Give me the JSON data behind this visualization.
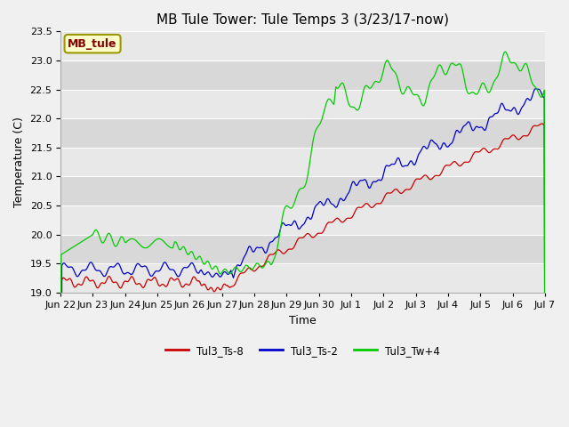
{
  "title": "MB Tule Tower: Tule Temps 3 (3/23/17-now)",
  "xlabel": "Time",
  "ylabel": "Temperature (C)",
  "ylim": [
    19.0,
    23.5
  ],
  "legend_label": "MB_tule",
  "series_labels": [
    "Tul3_Ts-8",
    "Tul3_Ts-2",
    "Tul3_Tw+4"
  ],
  "series_colors": [
    "#cc0000",
    "#0000cc",
    "#00cc00"
  ],
  "x_tick_labels": [
    "Jun 22",
    "Jun 23",
    "Jun 24",
    "Jun 25",
    "Jun 26",
    "Jun 27",
    "Jun 28",
    "Jun 29",
    "Jun 30",
    "Jul 1",
    "Jul 2",
    "Jul 3",
    "Jul 4",
    "Jul 5",
    "Jul 6",
    "Jul 7"
  ],
  "fig_bg_color": "#f0f0f0",
  "plot_bg_color": "#e0e0e0",
  "grid_color": "#ffffff",
  "title_fontsize": 11,
  "axis_fontsize": 9,
  "tick_fontsize": 8,
  "legend_box_facecolor": "#ffffcc",
  "legend_box_edgecolor": "#999900",
  "legend_text_color": "#880000"
}
